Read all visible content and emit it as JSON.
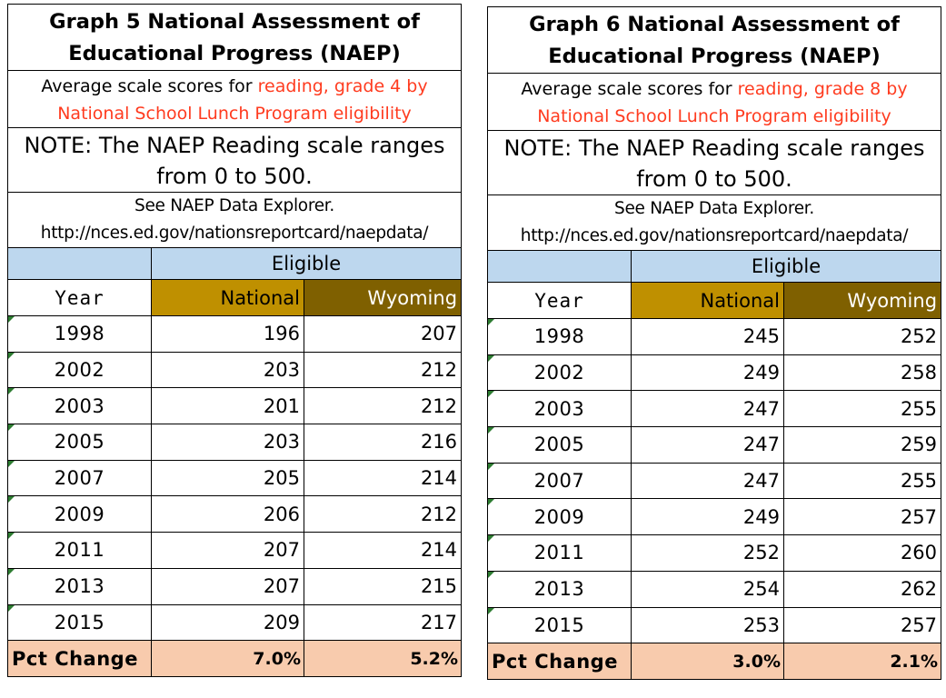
{
  "chart_data": [
    {
      "type": "table",
      "title_line1": "Graph 5 National Assessment of",
      "title_line2": "Educational Progress (NAEP)",
      "subtitle_prefix": "Average scale scores for ",
      "subtitle_red_line1": "reading, grade 4 by",
      "subtitle_red_line2": "National School Lunch Program eligibility",
      "note_line1": "NOTE: The NAEP Reading scale ranges",
      "note_line2": "from 0 to 500.",
      "see_line1": "See NAEP Data Explorer.",
      "see_line2": "http://nces.ed.gov/nationsreportcard/naepdata/",
      "group_header": "Eligible",
      "columns": [
        "Year",
        "National",
        "Wyoming"
      ],
      "rows": [
        {
          "year": "1998",
          "national": "196",
          "wyoming": "207"
        },
        {
          "year": "2002",
          "national": "203",
          "wyoming": "212"
        },
        {
          "year": "2003",
          "national": "201",
          "wyoming": "212"
        },
        {
          "year": "2005",
          "national": "203",
          "wyoming": "216"
        },
        {
          "year": "2007",
          "national": "205",
          "wyoming": "214"
        },
        {
          "year": "2009",
          "national": "206",
          "wyoming": "212"
        },
        {
          "year": "2011",
          "national": "207",
          "wyoming": "214"
        },
        {
          "year": "2013",
          "national": "207",
          "wyoming": "215"
        },
        {
          "year": "2015",
          "national": "209",
          "wyoming": "217"
        }
      ],
      "pct_change_label": "Pct Change",
      "pct_change": {
        "national": "7.0%",
        "wyoming": "5.2%"
      }
    },
    {
      "type": "table",
      "title_line1": "Graph 6 National Assessment of",
      "title_line2": "Educational Progress (NAEP)",
      "subtitle_prefix": "Average scale scores for ",
      "subtitle_red_line1": "reading, grade 8 by",
      "subtitle_red_line2": "National School Lunch Program eligibility",
      "note_line1": "NOTE: The NAEP Reading scale ranges",
      "note_line2": "from 0 to 500.",
      "see_line1": "See NAEP Data Explorer.",
      "see_line2": "http://nces.ed.gov/nationsreportcard/naepdata/",
      "group_header": "Eligible",
      "columns": [
        "Year",
        "National",
        "Wyoming"
      ],
      "rows": [
        {
          "year": "1998",
          "national": "245",
          "wyoming": "252"
        },
        {
          "year": "2002",
          "national": "249",
          "wyoming": "258"
        },
        {
          "year": "2003",
          "national": "247",
          "wyoming": "255"
        },
        {
          "year": "2005",
          "national": "247",
          "wyoming": "259"
        },
        {
          "year": "2007",
          "national": "247",
          "wyoming": "255"
        },
        {
          "year": "2009",
          "national": "249",
          "wyoming": "257"
        },
        {
          "year": "2011",
          "national": "252",
          "wyoming": "260"
        },
        {
          "year": "2013",
          "national": "254",
          "wyoming": "262"
        },
        {
          "year": "2015",
          "national": "253",
          "wyoming": "257"
        }
      ],
      "pct_change_label": "Pct Change",
      "pct_change": {
        "national": "3.0%",
        "wyoming": "2.1%"
      }
    }
  ],
  "colors": {
    "subtitle_highlight": "#ff3b1f",
    "eligible_header": "#bdd7ee",
    "national_header": "#bf9000",
    "wyoming_header": "#7f6000",
    "pct_change_row": "#f8cbad",
    "cell_marker": "#2e7d32"
  }
}
